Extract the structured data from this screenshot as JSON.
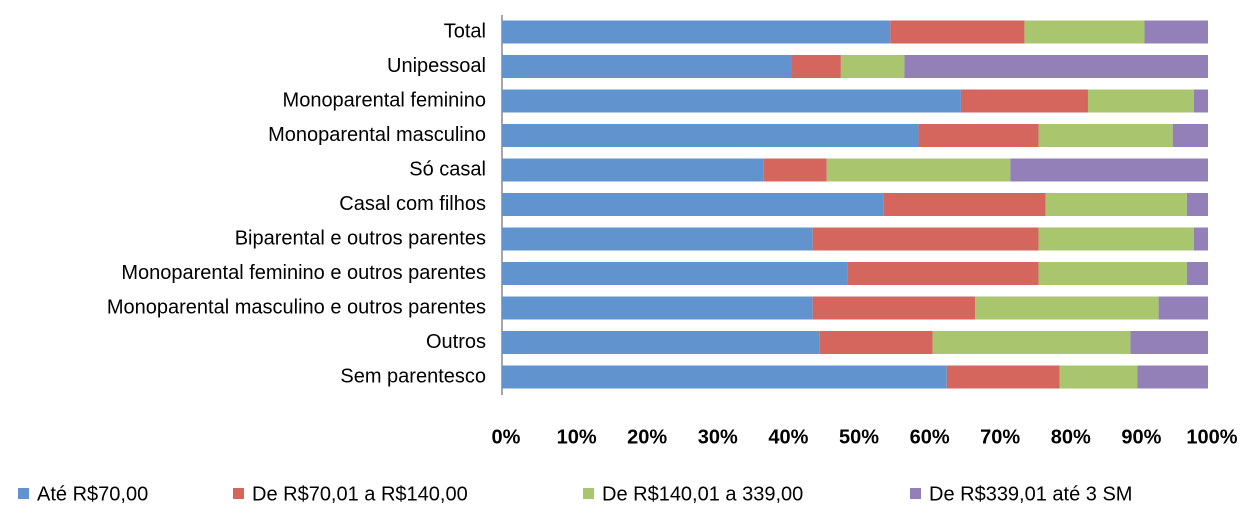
{
  "chart_data": {
    "type": "stacked-barh",
    "categories": [
      "Total",
      "Unipessoal",
      "Monoparental feminino",
      "Monoparental masculino",
      "Só casal",
      "Casal com filhos",
      "Biparental e outros parentes",
      "Monoparental feminino e outros parentes",
      "Monoparental masculino e outros parentes",
      "Outros",
      "Sem parentesco"
    ],
    "series": [
      {
        "name": "Até R$70,00",
        "color": "#6194cf",
        "values": [
          55,
          41,
          65,
          59,
          37,
          54,
          44,
          49,
          44,
          45,
          63
        ]
      },
      {
        "name": "De R$70,01 a R$140,00",
        "color": "#d4665e",
        "values": [
          19,
          7,
          18,
          17,
          9,
          23,
          32,
          27,
          23,
          16,
          16
        ]
      },
      {
        "name": "De R$140,01 a 339,00",
        "color": "#a9c66f",
        "values": [
          17,
          9,
          15,
          19,
          26,
          20,
          22,
          21,
          26,
          28,
          11
        ]
      },
      {
        "name": "De R$339,01 até 3 SM",
        "color": "#9380b8",
        "values": [
          9,
          43,
          2,
          5,
          28,
          3,
          2,
          3,
          7,
          11,
          10
        ]
      }
    ],
    "xlim": [
      0,
      100
    ],
    "xticks": [
      {
        "value": 0,
        "label": "0%"
      },
      {
        "value": 10,
        "label": "10%"
      },
      {
        "value": 20,
        "label": "20%"
      },
      {
        "value": 30,
        "label": "30%"
      },
      {
        "value": 40,
        "label": "40%"
      },
      {
        "value": 50,
        "label": "50%"
      },
      {
        "value": 60,
        "label": "60%"
      },
      {
        "value": 70,
        "label": "70%"
      },
      {
        "value": 80,
        "label": "80%"
      },
      {
        "value": 90,
        "label": "90%"
      },
      {
        "value": 100,
        "label": "100%"
      }
    ],
    "legend": "bottom"
  }
}
